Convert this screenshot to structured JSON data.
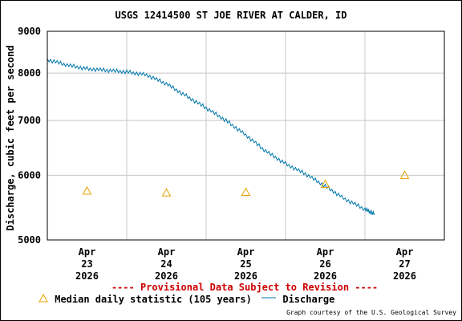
{
  "chart_data": {
    "type": "line",
    "title": "USGS 12414500 ST JOE RIVER AT CALDER, ID",
    "ylabel": "Discharge, cubic feet per second",
    "xlabel": "",
    "y_scale": "log",
    "ylim": [
      5000,
      9000
    ],
    "y_ticks": [
      "9000",
      "8000",
      "7000",
      "6000",
      "5000"
    ],
    "y_tick_values": [
      9000,
      8000,
      7000,
      6000,
      5000
    ],
    "x_ticks": [
      {
        "month": "Apr",
        "day": "23",
        "year": "2026",
        "date": "2026-04-23T00:00"
      },
      {
        "month": "Apr",
        "day": "24",
        "year": "2026",
        "date": "2026-04-24T00:00"
      },
      {
        "month": "Apr",
        "day": "25",
        "year": "2026",
        "date": "2026-04-25T00:00"
      },
      {
        "month": "Apr",
        "day": "26",
        "year": "2026",
        "date": "2026-04-26T00:00"
      },
      {
        "month": "Apr",
        "day": "27",
        "year": "2026",
        "date": "2026-04-27T00:00"
      }
    ],
    "xlim": [
      "2026-04-22T12:00",
      "2026-04-27T12:00"
    ],
    "grid": true,
    "series": [
      {
        "name": "Discharge",
        "type": "line",
        "color": "#0077aa",
        "points": [
          {
            "x": "2026-04-22T12:00",
            "y": 8310
          },
          {
            "x": "2026-04-22T18:00",
            "y": 8180
          },
          {
            "x": "2026-04-23T00:00",
            "y": 8100
          },
          {
            "x": "2026-04-23T06:00",
            "y": 8060
          },
          {
            "x": "2026-04-23T12:00",
            "y": 8030
          },
          {
            "x": "2026-04-23T18:00",
            "y": 7960
          },
          {
            "x": "2026-04-24T00:00",
            "y": 7760
          },
          {
            "x": "2026-04-24T06:00",
            "y": 7500
          },
          {
            "x": "2026-04-24T12:00",
            "y": 7250
          },
          {
            "x": "2026-04-24T18:00",
            "y": 7000
          },
          {
            "x": "2026-04-25T00:00",
            "y": 6720
          },
          {
            "x": "2026-04-25T06:00",
            "y": 6420
          },
          {
            "x": "2026-04-25T12:00",
            "y": 6200
          },
          {
            "x": "2026-04-25T18:00",
            "y": 6020
          },
          {
            "x": "2026-04-26T00:00",
            "y": 5820
          },
          {
            "x": "2026-04-26T06:00",
            "y": 5610
          },
          {
            "x": "2026-04-26T12:00",
            "y": 5450
          },
          {
            "x": "2026-04-26T15:00",
            "y": 5380
          }
        ]
      },
      {
        "name": "Median daily statistic (105 years)",
        "type": "marker",
        "marker": "triangle",
        "color": "#e6a100",
        "points": [
          {
            "x": "2026-04-23T00:00",
            "y": 5740
          },
          {
            "x": "2026-04-24T00:00",
            "y": 5710
          },
          {
            "x": "2026-04-25T00:00",
            "y": 5720
          },
          {
            "x": "2026-04-26T00:00",
            "y": 5850
          },
          {
            "x": "2026-04-27T00:00",
            "y": 6000
          }
        ]
      }
    ],
    "legend": {
      "position": "bottom-left",
      "entries": [
        {
          "label": "Median daily statistic (105 years)",
          "symbol": "triangle",
          "color": "#e6a100"
        },
        {
          "label": "Discharge",
          "symbol": "line",
          "color": "#0077aa"
        }
      ]
    }
  },
  "disclaimer": "---- Provisional Data Subject to Revision ----",
  "credit": "Graph courtesy of the U.S. Geological Survey",
  "colors": {
    "grid": "#c8c8c8",
    "disclaimer": "#cc0000",
    "discharge": "#0077aa",
    "median": "#e6a100"
  }
}
